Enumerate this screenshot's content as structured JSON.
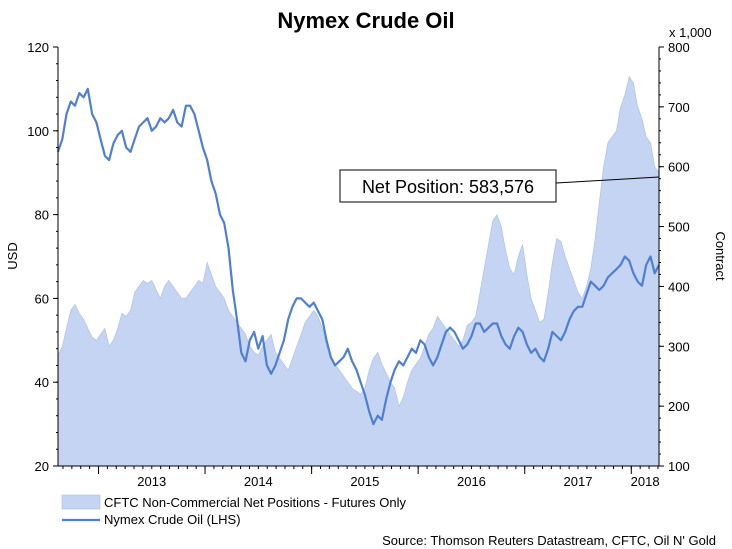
{
  "colors": {
    "area_fill": "#c4d4f2",
    "area_edge": "#a9bde6",
    "line": "#4f7fd2",
    "axis": "#000000"
  },
  "chart_data": {
    "type": "line",
    "title": "Nymex Crude Oil",
    "ylabel_left": "USD",
    "ylabel_right": "Contract",
    "right_axis_multiplier": "x 1,000",
    "ylim_left": [
      20,
      120
    ],
    "ylim_right": [
      100,
      800
    ],
    "yticks_left": [
      "20",
      "40",
      "60",
      "80",
      "100",
      "120"
    ],
    "yticks_right": [
      "100",
      "200",
      "300",
      "400",
      "500",
      "600",
      "700",
      "800"
    ],
    "x_range": [
      2012.62,
      2018.26
    ],
    "x_tick_years": [
      "2013",
      "2014",
      "2015",
      "2016",
      "2017",
      "2018"
    ],
    "grid": false,
    "legend_position": "bottom-left",
    "annotation": "Net Position: 583,576",
    "source": "Source: Thomson Reuters Datastream, CFTC, Oil N' Gold",
    "series": [
      {
        "name": "CFTC Non-Commercial Net Positions - Futures Only",
        "type": "area",
        "axis": "right",
        "x": [
          2012.62,
          2012.66,
          2012.7,
          2012.74,
          2012.78,
          2012.82,
          2012.86,
          2012.9,
          2012.94,
          2012.98,
          2013.02,
          2013.06,
          2013.1,
          2013.14,
          2013.18,
          2013.22,
          2013.26,
          2013.3,
          2013.34,
          2013.38,
          2013.42,
          2013.46,
          2013.5,
          2013.54,
          2013.58,
          2013.62,
          2013.66,
          2013.7,
          2013.74,
          2013.78,
          2013.82,
          2013.86,
          2013.9,
          2013.94,
          2013.98,
          2014.02,
          2014.06,
          2014.1,
          2014.14,
          2014.18,
          2014.22,
          2014.26,
          2014.3,
          2014.34,
          2014.38,
          2014.42,
          2014.46,
          2014.5,
          2014.54,
          2014.58,
          2014.62,
          2014.66,
          2014.7,
          2014.74,
          2014.78,
          2014.82,
          2014.86,
          2014.9,
          2014.94,
          2014.98,
          2015.02,
          2015.06,
          2015.1,
          2015.14,
          2015.18,
          2015.22,
          2015.26,
          2015.3,
          2015.34,
          2015.38,
          2015.42,
          2015.46,
          2015.5,
          2015.54,
          2015.58,
          2015.62,
          2015.66,
          2015.7,
          2015.74,
          2015.78,
          2015.82,
          2015.86,
          2015.9,
          2015.94,
          2015.98,
          2016.02,
          2016.06,
          2016.1,
          2016.14,
          2016.18,
          2016.22,
          2016.26,
          2016.3,
          2016.34,
          2016.38,
          2016.42,
          2016.46,
          2016.5,
          2016.54,
          2016.58,
          2016.62,
          2016.66,
          2016.7,
          2016.74,
          2016.78,
          2016.82,
          2016.86,
          2016.9,
          2016.94,
          2016.98,
          2017.02,
          2017.06,
          2017.1,
          2017.14,
          2017.18,
          2017.22,
          2017.26,
          2017.3,
          2017.34,
          2017.38,
          2017.42,
          2017.46,
          2017.5,
          2017.54,
          2017.58,
          2017.62,
          2017.66,
          2017.7,
          2017.74,
          2017.78,
          2017.82,
          2017.86,
          2017.9,
          2017.94,
          2017.98,
          2018.02,
          2018.06,
          2018.1,
          2018.14,
          2018.18,
          2018.22,
          2018.26
        ],
        "values": [
          285,
          300,
          330,
          360,
          370,
          355,
          345,
          330,
          315,
          310,
          320,
          330,
          300,
          310,
          330,
          355,
          350,
          360,
          390,
          400,
          410,
          405,
          410,
          395,
          380,
          400,
          410,
          400,
          390,
          380,
          380,
          390,
          400,
          410,
          405,
          440,
          420,
          400,
          390,
          380,
          360,
          350,
          340,
          330,
          320,
          300,
          290,
          285,
          300,
          310,
          320,
          290,
          280,
          270,
          260,
          280,
          300,
          320,
          340,
          350,
          360,
          350,
          330,
          300,
          285,
          270,
          260,
          250,
          240,
          230,
          225,
          220,
          230,
          260,
          280,
          290,
          270,
          255,
          240,
          230,
          200,
          215,
          240,
          260,
          270,
          280,
          300,
          320,
          330,
          350,
          340,
          330,
          320,
          310,
          300,
          310,
          335,
          340,
          350,
          390,
          430,
          470,
          510,
          520,
          500,
          460,
          430,
          420,
          450,
          470,
          420,
          380,
          360,
          340,
          345,
          390,
          440,
          480,
          475,
          450,
          430,
          410,
          390,
          380,
          400,
          430,
          480,
          540,
          600,
          640,
          650,
          660,
          700,
          720,
          750,
          740,
          700,
          680,
          650,
          640,
          600,
          590
        ]
      },
      {
        "name": "Nymex Crude Oil (LHS)",
        "type": "line",
        "axis": "left",
        "x": [
          2012.62,
          2012.66,
          2012.7,
          2012.74,
          2012.78,
          2012.82,
          2012.86,
          2012.9,
          2012.94,
          2012.98,
          2013.02,
          2013.06,
          2013.1,
          2013.14,
          2013.18,
          2013.22,
          2013.26,
          2013.3,
          2013.34,
          2013.38,
          2013.42,
          2013.46,
          2013.5,
          2013.54,
          2013.58,
          2013.62,
          2013.66,
          2013.7,
          2013.74,
          2013.78,
          2013.82,
          2013.86,
          2013.9,
          2013.94,
          2013.98,
          2014.02,
          2014.06,
          2014.1,
          2014.14,
          2014.18,
          2014.22,
          2014.26,
          2014.3,
          2014.34,
          2014.38,
          2014.42,
          2014.46,
          2014.5,
          2014.54,
          2014.58,
          2014.62,
          2014.66,
          2014.7,
          2014.74,
          2014.78,
          2014.82,
          2014.86,
          2014.9,
          2014.94,
          2014.98,
          2015.02,
          2015.06,
          2015.1,
          2015.14,
          2015.18,
          2015.22,
          2015.26,
          2015.3,
          2015.34,
          2015.38,
          2015.42,
          2015.46,
          2015.5,
          2015.54,
          2015.58,
          2015.62,
          2015.66,
          2015.7,
          2015.74,
          2015.78,
          2015.82,
          2015.86,
          2015.9,
          2015.94,
          2015.98,
          2016.02,
          2016.06,
          2016.1,
          2016.14,
          2016.18,
          2016.22,
          2016.26,
          2016.3,
          2016.34,
          2016.38,
          2016.42,
          2016.46,
          2016.5,
          2016.54,
          2016.58,
          2016.62,
          2016.66,
          2016.7,
          2016.74,
          2016.78,
          2016.82,
          2016.86,
          2016.9,
          2016.94,
          2016.98,
          2017.02,
          2017.06,
          2017.1,
          2017.14,
          2017.18,
          2017.22,
          2017.26,
          2017.3,
          2017.34,
          2017.38,
          2017.42,
          2017.46,
          2017.5,
          2017.54,
          2017.58,
          2017.62,
          2017.66,
          2017.7,
          2017.74,
          2017.78,
          2017.82,
          2017.86,
          2017.9,
          2017.94,
          2017.98,
          2018.02,
          2018.06,
          2018.1,
          2018.14,
          2018.18,
          2018.22,
          2018.26
        ],
        "values": [
          95,
          98,
          104,
          107,
          106,
          109,
          108,
          110,
          104,
          102,
          98,
          94,
          93,
          97,
          99,
          100,
          96,
          95,
          98,
          101,
          102,
          103,
          100,
          101,
          103,
          102,
          103,
          105,
          102,
          101,
          106,
          106,
          104,
          100,
          96,
          93,
          88,
          85,
          80,
          78,
          72,
          62,
          55,
          47,
          45,
          50,
          52,
          48,
          51,
          44,
          42,
          44,
          47,
          50,
          55,
          58,
          60,
          60,
          59,
          58,
          59,
          57,
          55,
          50,
          46,
          44,
          45,
          46,
          48,
          45,
          43,
          40,
          37,
          33,
          30,
          32,
          31,
          36,
          40,
          43,
          45,
          44,
          46,
          48,
          47,
          50,
          49,
          46,
          44,
          46,
          49,
          52,
          53,
          52,
          50,
          48,
          49,
          51,
          54,
          54,
          52,
          53,
          54,
          54,
          51,
          49,
          48,
          51,
          53,
          52,
          49,
          47,
          48,
          46,
          45,
          48,
          52,
          51,
          50,
          52,
          55,
          57,
          58,
          58,
          61,
          64,
          63,
          62,
          63,
          65,
          66,
          67,
          68,
          70,
          69,
          66,
          64,
          63,
          68,
          70,
          66,
          68
        ]
      }
    ]
  }
}
